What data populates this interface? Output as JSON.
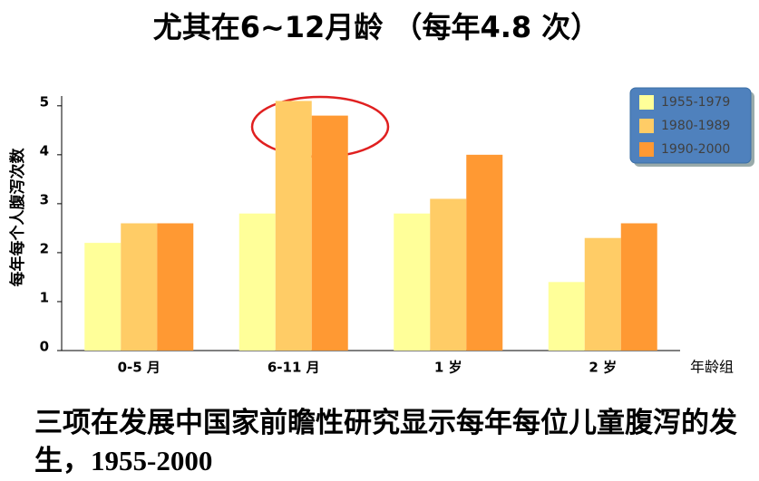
{
  "chart_data": {
    "type": "bar",
    "title": "尤其在6~12月龄 （每年4.8 次）",
    "y_label": "每年每个人腹泻次数",
    "x_label": "年龄组",
    "categories": [
      "0-5 月",
      "6-11 月",
      "1 岁",
      "2 岁"
    ],
    "series": [
      {
        "name": "1955-1979",
        "color": "#ffff99",
        "values": [
          2.2,
          2.8,
          2.8,
          1.4
        ]
      },
      {
        "name": "1980-1989",
        "color": "#ffcc66",
        "values": [
          2.6,
          5.1,
          3.1,
          2.3
        ]
      },
      {
        "name": "1990-2000",
        "color": "#ff9933",
        "values": [
          2.6,
          4.8,
          4.0,
          2.6
        ]
      }
    ],
    "ylim": [
      0,
      5.2
    ],
    "yticks": [
      0,
      1,
      2,
      3,
      4,
      5
    ],
    "grid": false,
    "legend": "top-right"
  },
  "note": "三项在发展中国家前瞻性研究显示每年每位儿童腹泻的发生，1955-2000"
}
